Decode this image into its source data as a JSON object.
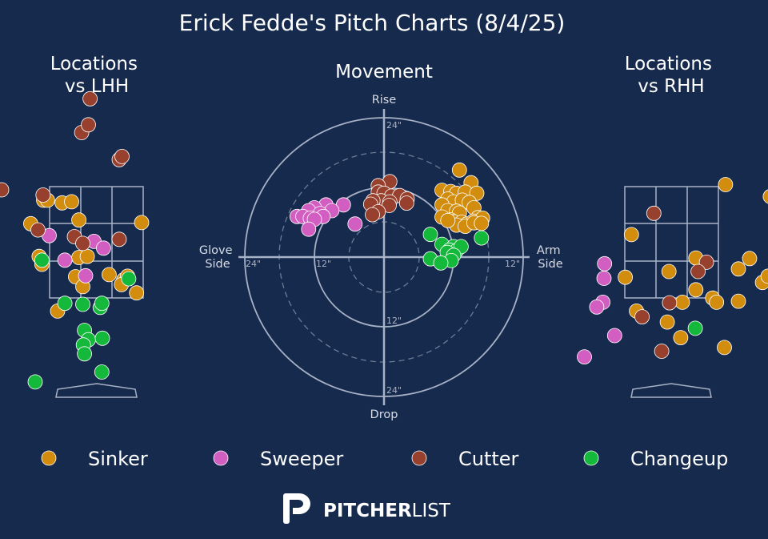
{
  "title": "Erick Fedde's Pitch Charts (8/4/25)",
  "colors": {
    "background": "#162a4d",
    "Sinker": "#d28d0e",
    "Sweeper": "#d35ec1",
    "Cutter": "#97402d",
    "Changeup": "#14b83a",
    "guide": "#a8b2c6"
  },
  "legend": [
    "Sinker",
    "Sweeper",
    "Cutter",
    "Changeup"
  ],
  "brand": {
    "icon": "pitcherlist-p-logo",
    "name_bold": "PITCHER",
    "name_light": "LIST"
  },
  "chart_data": [
    {
      "type": "scatter",
      "title": "Locations\nvs LHH",
      "series": [
        {
          "name": "Sinker",
          "points": [
            [
              -0.95,
              3.8
            ],
            [
              -0.88,
              3.8
            ],
            [
              -0.62,
              3.75
            ],
            [
              -0.45,
              3.77
            ],
            [
              -0.32,
              3.42
            ],
            [
              -1.18,
              3.35
            ],
            [
              -1.03,
              2.72
            ],
            [
              -0.98,
              2.57
            ],
            [
              -0.32,
              2.7
            ],
            [
              -0.17,
              2.72
            ],
            [
              -0.38,
              2.33
            ],
            [
              -0.25,
              2.14
            ],
            [
              0.22,
              2.37
            ],
            [
              0.48,
              2.27
            ],
            [
              0.55,
              2.34
            ],
            [
              0.44,
              2.18
            ],
            [
              0.71,
              2.02
            ],
            [
              -0.7,
              1.67
            ],
            [
              0.8,
              3.37
            ]
          ]
        },
        {
          "name": "Sweeper",
          "points": [
            [
              -0.85,
              3.12
            ],
            [
              -0.57,
              2.65
            ],
            [
              -0.05,
              3.01
            ],
            [
              0.12,
              2.88
            ],
            [
              -0.2,
              2.35
            ]
          ]
        },
        {
          "name": "Cutter",
          "points": [
            [
              -0.12,
              5.75
            ],
            [
              -0.27,
              5.1
            ],
            [
              -0.15,
              5.25
            ],
            [
              0.4,
              4.58
            ],
            [
              0.45,
              4.64
            ],
            [
              -1.7,
              4
            ],
            [
              -0.96,
              3.9
            ],
            [
              -1.05,
              3.23
            ],
            [
              -0.4,
              3.1
            ],
            [
              -0.25,
              2.97
            ],
            [
              0.4,
              3.05
            ]
          ]
        },
        {
          "name": "Changeup",
          "points": [
            [
              -0.98,
              2.65
            ],
            [
              0.57,
              2.29
            ],
            [
              -0.57,
              1.82
            ],
            [
              -0.25,
              1.8
            ],
            [
              0.06,
              1.74
            ],
            [
              0.09,
              1.82
            ],
            [
              -0.22,
              1.3
            ],
            [
              -0.15,
              1.12
            ],
            [
              -0.24,
              1.02
            ],
            [
              0.1,
              1.15
            ],
            [
              -0.22,
              0.85
            ],
            [
              0.09,
              0.5
            ],
            [
              -1.1,
              0.31
            ]
          ]
        }
      ]
    },
    {
      "type": "scatter",
      "title": "Movement",
      "axis_labels": {
        "top": "Rise",
        "bottom": "Drop",
        "left": "Glove\nSide",
        "right": "Arm\nSide"
      },
      "rings": [
        6,
        12,
        18,
        24
      ],
      "ring_labels": [
        "24\"",
        "12\"",
        "12\"",
        "24\"",
        "24\"",
        "12\""
      ],
      "series": [
        {
          "name": "Sinker",
          "points": [
            [
              13,
              15
            ],
            [
              15,
              12.8
            ],
            [
              10,
              11.5
            ],
            [
              11.5,
              11.3
            ],
            [
              12.5,
              11
            ],
            [
              14,
              11.2
            ],
            [
              16,
              11
            ],
            [
              11,
              10
            ],
            [
              12,
              9.5
            ],
            [
              13.5,
              9.8
            ],
            [
              14.7,
              9.4
            ],
            [
              10,
              9
            ],
            [
              15.5,
              8.5
            ],
            [
              11,
              8
            ],
            [
              12.5,
              7.9
            ],
            [
              13,
              7.6
            ],
            [
              16.2,
              6.8
            ],
            [
              10,
              6.9
            ],
            [
              11.5,
              6.4
            ],
            [
              12,
              6.1
            ],
            [
              13.4,
              6
            ],
            [
              14.3,
              5.7
            ],
            [
              15.4,
              6.2
            ],
            [
              17,
              6.7
            ],
            [
              12.5,
              5.5
            ],
            [
              14,
              5.3
            ],
            [
              15.5,
              5.9
            ],
            [
              16.8,
              5.8
            ],
            [
              11,
              6.3
            ]
          ]
        },
        {
          "name": "Sweeper",
          "points": [
            [
              -10,
              9
            ],
            [
              -7,
              9
            ],
            [
              -12,
              8.5
            ],
            [
              -9,
              8
            ],
            [
              -13,
              8
            ],
            [
              -11,
              7.5
            ],
            [
              -15,
              7
            ],
            [
              -10.5,
              7
            ],
            [
              -14,
              7
            ],
            [
              -12.7,
              6.7
            ],
            [
              -12,
              6.5
            ],
            [
              -5,
              5.7
            ],
            [
              -13,
              4.8
            ]
          ]
        },
        {
          "name": "Cutter",
          "points": [
            [
              1,
              13
            ],
            [
              -1,
              12.3
            ],
            [
              -1,
              11.2
            ],
            [
              0,
              11
            ],
            [
              1.3,
              10.5
            ],
            [
              2.7,
              10.6
            ],
            [
              4,
              10
            ],
            [
              -0.5,
              9.7
            ],
            [
              -1.9,
              9.7
            ],
            [
              1,
              9.5
            ],
            [
              3.9,
              9.3
            ],
            [
              -2.3,
              9.1
            ],
            [
              0.9,
              8.9
            ],
            [
              -1,
              7.8
            ],
            [
              -2,
              7.3
            ]
          ]
        },
        {
          "name": "Changeup",
          "points": [
            [
              8,
              3.9
            ],
            [
              10,
              2.2
            ],
            [
              12,
              1.8
            ],
            [
              11.3,
              1.2
            ],
            [
              12.5,
              1.1
            ],
            [
              13.3,
              1.8
            ],
            [
              16.8,
              3.3
            ],
            [
              10.9,
              0.8
            ],
            [
              12,
              0.3
            ],
            [
              8,
              -0.3
            ],
            [
              11.6,
              -0.6
            ],
            [
              9.8,
              -1
            ]
          ]
        }
      ]
    },
    {
      "type": "scatter",
      "title": "Locations\nvs RHH",
      "series": [
        {
          "name": "Sinker",
          "points": [
            [
              0.97,
              4.1
            ],
            [
              1.77,
              3.87
            ],
            [
              -0.71,
              3.14
            ],
            [
              1.4,
              2.68
            ],
            [
              1.2,
              2.48
            ],
            [
              0.44,
              2.69
            ],
            [
              -0.82,
              2.32
            ],
            [
              -0.04,
              2.43
            ],
            [
              1.63,
              2.22
            ],
            [
              1.73,
              2.34
            ],
            [
              0.44,
              2.08
            ],
            [
              0.74,
              1.92
            ],
            [
              0.81,
              1.84
            ],
            [
              0.2,
              1.84
            ],
            [
              -0.07,
              1.46
            ],
            [
              1.2,
              1.86
            ],
            [
              -0.62,
              1.67
            ],
            [
              0.17,
              1.16
            ],
            [
              0.95,
              0.97
            ]
          ]
        },
        {
          "name": "Sweeper",
          "points": [
            [
              -1.19,
              2.58
            ],
            [
              -1.2,
              2.3
            ],
            [
              -1.22,
              1.84
            ],
            [
              -1.33,
              1.75
            ],
            [
              -1.01,
              1.2
            ],
            [
              -1.55,
              0.79
            ]
          ]
        },
        {
          "name": "Cutter",
          "points": [
            [
              -0.31,
              3.55
            ],
            [
              0.63,
              2.61
            ],
            [
              0.48,
              2.43
            ],
            [
              -0.03,
              1.83
            ],
            [
              -0.52,
              1.56
            ],
            [
              -0.17,
              0.9
            ]
          ]
        },
        {
          "name": "Changeup",
          "points": [
            [
              0.43,
              1.34
            ]
          ]
        }
      ]
    }
  ]
}
